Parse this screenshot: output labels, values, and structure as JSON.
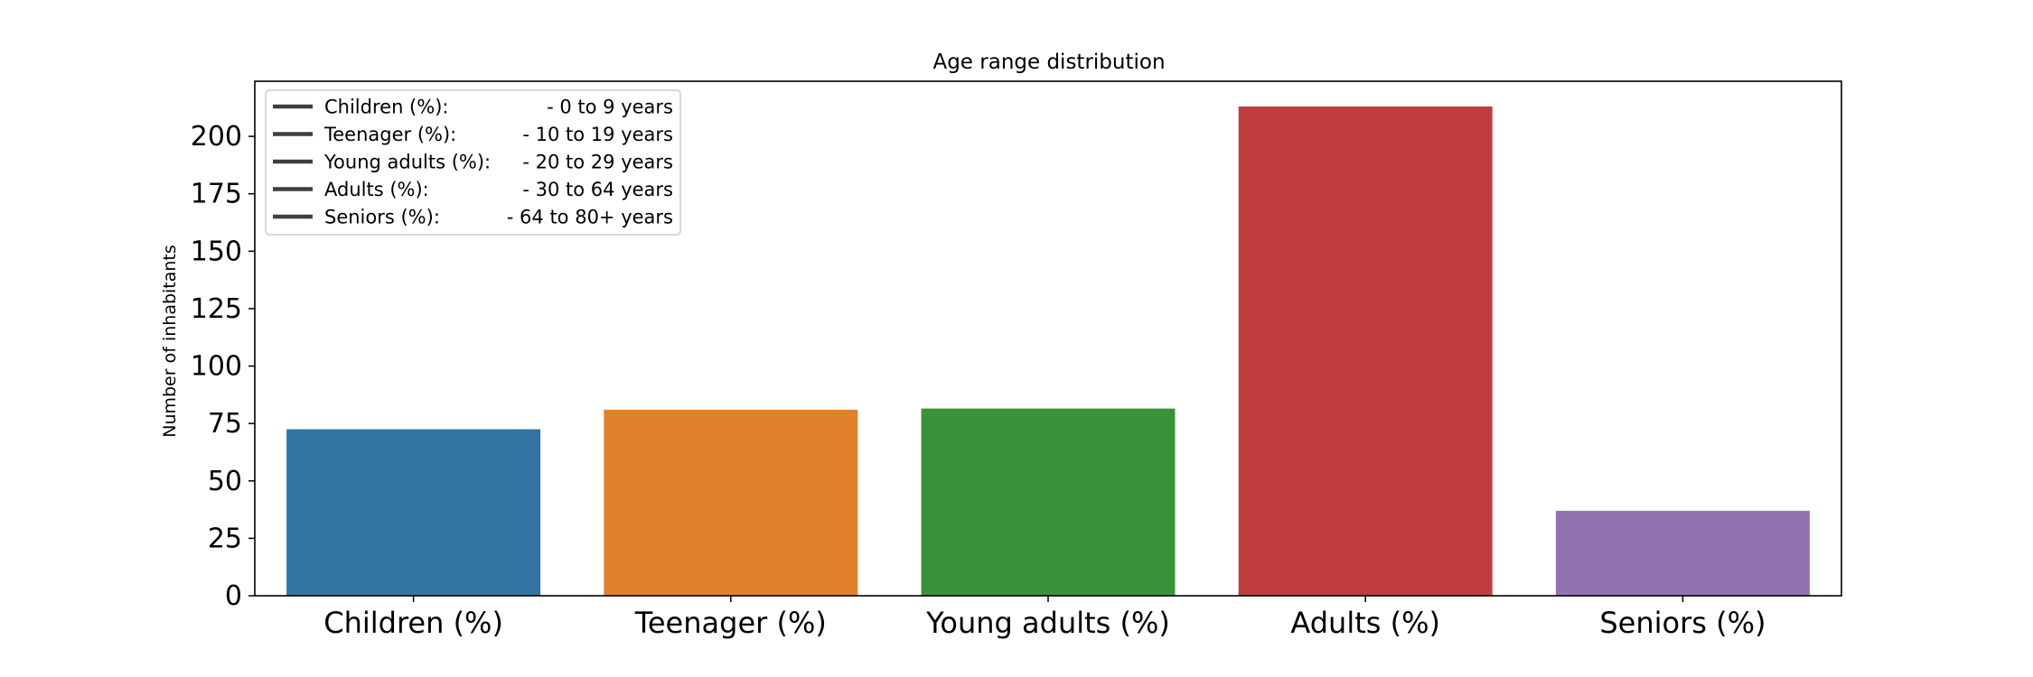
{
  "chart_data": {
    "type": "bar",
    "title": "Age range distribution",
    "xlabel": "",
    "ylabel": "Number of inhabitants",
    "categories": [
      "Children (%)",
      "Teenager (%)",
      "Young adults (%)",
      "Adults (%)",
      "Seniors (%)"
    ],
    "values": [
      72.5,
      81,
      81.5,
      213,
      37
    ],
    "colors": [
      "#3274a1",
      "#e1812c",
      "#3a923a",
      "#c03d3e",
      "#9372b2"
    ],
    "ylim": [
      0,
      224
    ],
    "yticks": [
      0,
      25,
      50,
      75,
      100,
      125,
      150,
      175,
      200
    ],
    "grid": false,
    "legend": {
      "placement": "top-left",
      "line_color": "#3f3f3f",
      "entries": [
        {
          "label": "Children (%):",
          "range": "- 0 to 9 years"
        },
        {
          "label": "Teenager (%):",
          "range": "- 10 to 19 years"
        },
        {
          "label": "Young adults (%):",
          "range": "- 20 to 29 years"
        },
        {
          "label": "Adults (%):",
          "range": "- 30 to 64 years"
        },
        {
          "label": "Seniors (%):",
          "range": "- 64 to 80+ years"
        }
      ]
    }
  }
}
